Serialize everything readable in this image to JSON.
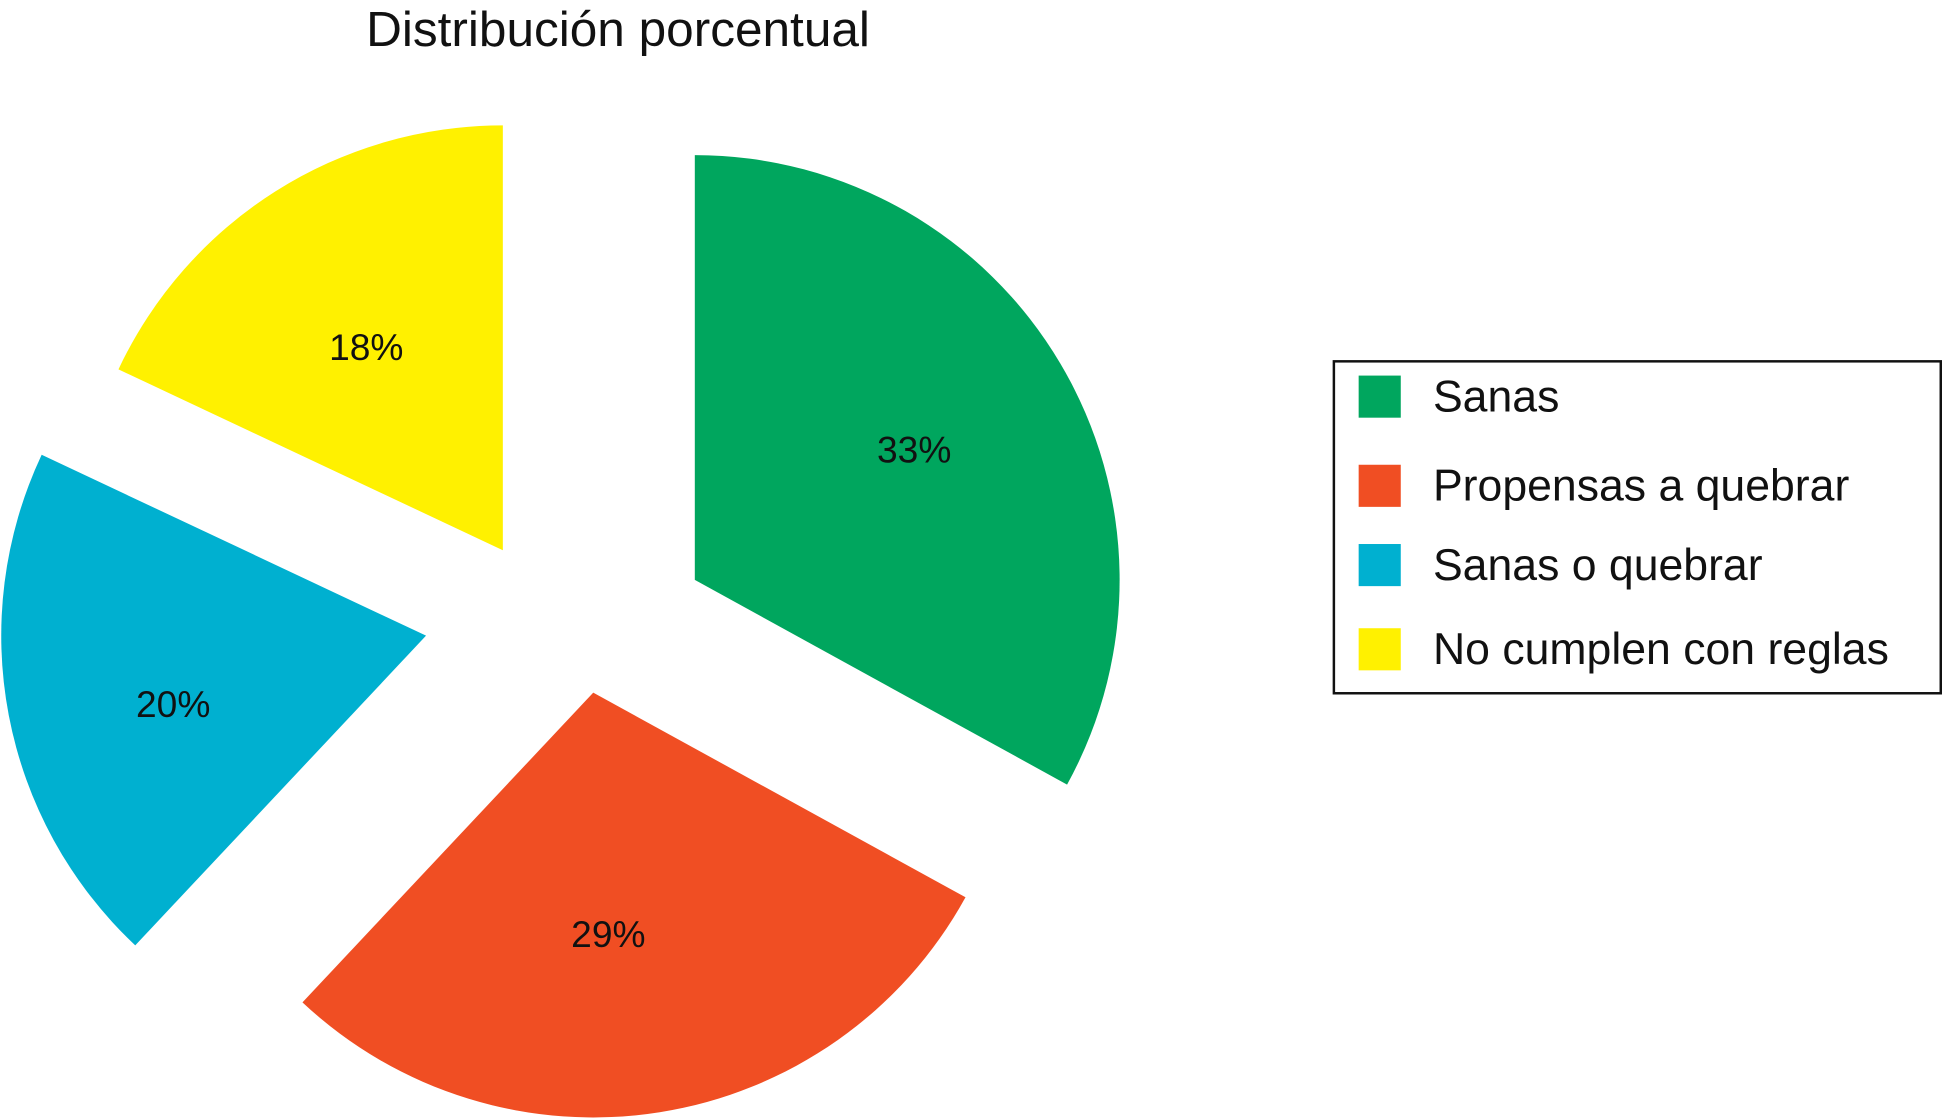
{
  "chart_data": {
    "type": "pie",
    "title": "Distribución porcentual",
    "exploded": true,
    "legend_position": "right",
    "slices": [
      {
        "name": "Sanas",
        "value": 33,
        "label": "33%",
        "color": "#00A65E"
      },
      {
        "name": "Propensas a quebrar",
        "value": 29,
        "label": "29%",
        "color": "#F04E23"
      },
      {
        "name": "Sanas o quebrar",
        "value": 20,
        "label": "20%",
        "color": "#00B0D0"
      },
      {
        "name": "No cumplen con reglas",
        "value": 18,
        "label": "18%",
        "color": "#FFF100"
      }
    ]
  }
}
